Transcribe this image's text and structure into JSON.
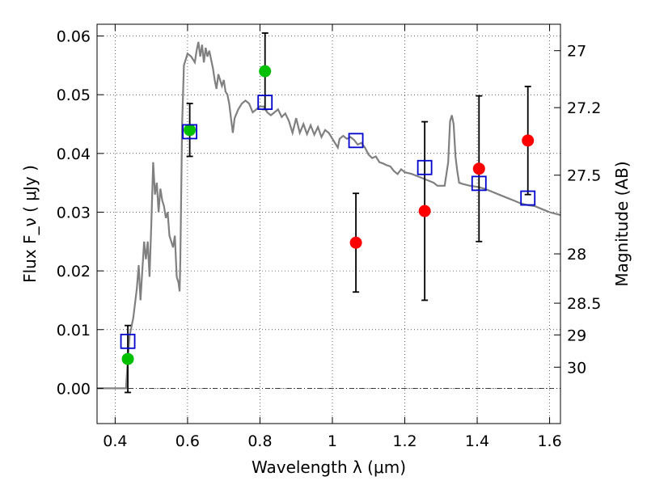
{
  "chart_data": {
    "type": "scatter",
    "xlabel": "Wavelength  λ (μm)",
    "ylabel": "Flux  F_ν  ( μJy )",
    "y2label": "Magnitude (AB)",
    "xlim": [
      0.35,
      1.63
    ],
    "ylim": [
      -0.006,
      0.062
    ],
    "grid": true,
    "x_ticks": [
      0.4,
      0.6,
      0.8,
      1.0,
      1.2,
      1.4,
      1.6
    ],
    "x_tick_labels": [
      "0.4",
      "0.6",
      "0.8",
      "1",
      "1.2",
      "1.4",
      "1.6"
    ],
    "y_ticks": [
      0.0,
      0.01,
      0.02,
      0.03,
      0.04,
      0.05,
      0.06
    ],
    "y_tick_labels": [
      "0.00",
      "0.01",
      "0.02",
      "0.03",
      "0.04",
      "0.05",
      "0.06"
    ],
    "y2_ticks": [
      {
        "label": "27",
        "flux": 0.0575
      },
      {
        "label": "27.2",
        "flux": 0.0478
      },
      {
        "label": "27.5",
        "flux": 0.0363
      },
      {
        "label": "28",
        "flux": 0.0229
      },
      {
        "label": "28.5",
        "flux": 0.0145
      },
      {
        "label": "29",
        "flux": 0.0091
      },
      {
        "label": "30",
        "flux": 0.0036
      }
    ],
    "series": [
      {
        "kind": "model_sed",
        "color": "#808080",
        "points": [
          [
            0.35,
            0.0
          ],
          [
            0.42,
            0.0
          ],
          [
            0.43,
            0.0
          ],
          [
            0.435,
            0.005
          ],
          [
            0.44,
            0.009
          ],
          [
            0.45,
            0.012
          ],
          [
            0.46,
            0.017
          ],
          [
            0.465,
            0.021
          ],
          [
            0.47,
            0.015
          ],
          [
            0.48,
            0.025
          ],
          [
            0.485,
            0.022
          ],
          [
            0.49,
            0.025
          ],
          [
            0.495,
            0.019
          ],
          [
            0.5,
            0.028
          ],
          [
            0.505,
            0.0385
          ],
          [
            0.51,
            0.033
          ],
          [
            0.515,
            0.035
          ],
          [
            0.52,
            0.03
          ],
          [
            0.525,
            0.034
          ],
          [
            0.53,
            0.032
          ],
          [
            0.535,
            0.031
          ],
          [
            0.54,
            0.029
          ],
          [
            0.545,
            0.03
          ],
          [
            0.55,
            0.026
          ],
          [
            0.56,
            0.024
          ],
          [
            0.565,
            0.026
          ],
          [
            0.57,
            0.019
          ],
          [
            0.575,
            0.018
          ],
          [
            0.578,
            0.0165
          ],
          [
            0.58,
            0.022
          ],
          [
            0.585,
            0.045
          ],
          [
            0.59,
            0.055
          ],
          [
            0.6,
            0.057
          ],
          [
            0.61,
            0.0565
          ],
          [
            0.62,
            0.0555
          ],
          [
            0.625,
            0.0575
          ],
          [
            0.63,
            0.059
          ],
          [
            0.635,
            0.0565
          ],
          [
            0.64,
            0.0585
          ],
          [
            0.645,
            0.0555
          ],
          [
            0.65,
            0.058
          ],
          [
            0.655,
            0.0565
          ],
          [
            0.66,
            0.0575
          ],
          [
            0.665,
            0.056
          ],
          [
            0.67,
            0.0545
          ],
          [
            0.675,
            0.0525
          ],
          [
            0.68,
            0.051
          ],
          [
            0.685,
            0.0535
          ],
          [
            0.69,
            0.0525
          ],
          [
            0.695,
            0.0515
          ],
          [
            0.7,
            0.0525
          ],
          [
            0.705,
            0.0505
          ],
          [
            0.71,
            0.05
          ],
          [
            0.715,
            0.0485
          ],
          [
            0.72,
            0.046
          ],
          [
            0.725,
            0.0435
          ],
          [
            0.73,
            0.046
          ],
          [
            0.74,
            0.0475
          ],
          [
            0.75,
            0.0485
          ],
          [
            0.76,
            0.049
          ],
          [
            0.77,
            0.0485
          ],
          [
            0.78,
            0.047
          ],
          [
            0.79,
            0.0475
          ],
          [
            0.8,
            0.048
          ],
          [
            0.81,
            0.048
          ],
          [
            0.82,
            0.047
          ],
          [
            0.83,
            0.0465
          ],
          [
            0.84,
            0.047
          ],
          [
            0.85,
            0.0475
          ],
          [
            0.86,
            0.0462
          ],
          [
            0.87,
            0.0468
          ],
          [
            0.88,
            0.0455
          ],
          [
            0.89,
            0.0435
          ],
          [
            0.9,
            0.046
          ],
          [
            0.91,
            0.0435
          ],
          [
            0.92,
            0.045
          ],
          [
            0.93,
            0.0433
          ],
          [
            0.94,
            0.0448
          ],
          [
            0.95,
            0.0432
          ],
          [
            0.96,
            0.0445
          ],
          [
            0.97,
            0.0428
          ],
          [
            0.98,
            0.044
          ],
          [
            0.99,
            0.0435
          ],
          [
            1.0,
            0.0425
          ],
          [
            1.01,
            0.0415
          ],
          [
            1.015,
            0.041
          ],
          [
            1.02,
            0.0425
          ],
          [
            1.03,
            0.043
          ],
          [
            1.04,
            0.0425
          ],
          [
            1.05,
            0.0428
          ],
          [
            1.06,
            0.0423
          ],
          [
            1.07,
            0.0415
          ],
          [
            1.08,
            0.0418
          ],
          [
            1.09,
            0.041
          ],
          [
            1.1,
            0.0398
          ],
          [
            1.11,
            0.0392
          ],
          [
            1.12,
            0.0395
          ],
          [
            1.13,
            0.0385
          ],
          [
            1.14,
            0.0383
          ],
          [
            1.15,
            0.038
          ],
          [
            1.16,
            0.0378
          ],
          [
            1.17,
            0.037
          ],
          [
            1.18,
            0.0365
          ],
          [
            1.19,
            0.0373
          ],
          [
            1.2,
            0.0368
          ],
          [
            1.22,
            0.0365
          ],
          [
            1.24,
            0.036
          ],
          [
            1.26,
            0.0355
          ],
          [
            1.28,
            0.035
          ],
          [
            1.29,
            0.0345
          ],
          [
            1.3,
            0.0345
          ],
          [
            1.31,
            0.0345
          ],
          [
            1.32,
            0.0385
          ],
          [
            1.325,
            0.0455
          ],
          [
            1.33,
            0.0465
          ],
          [
            1.335,
            0.045
          ],
          [
            1.34,
            0.0395
          ],
          [
            1.345,
            0.037
          ],
          [
            1.35,
            0.035
          ],
          [
            1.36,
            0.0348
          ],
          [
            1.38,
            0.0345
          ],
          [
            1.4,
            0.0343
          ],
          [
            1.42,
            0.034
          ],
          [
            1.44,
            0.0335
          ],
          [
            1.46,
            0.033
          ],
          [
            1.48,
            0.0325
          ],
          [
            1.5,
            0.032
          ],
          [
            1.52,
            0.0315
          ],
          [
            1.54,
            0.0312
          ],
          [
            1.56,
            0.031
          ],
          [
            1.58,
            0.0305
          ],
          [
            1.6,
            0.03
          ],
          [
            1.63,
            0.0295
          ]
        ]
      },
      {
        "kind": "model_band_flux",
        "color": "#0000cc",
        "points": [
          {
            "x": 0.435,
            "y": 0.008
          },
          {
            "x": 0.606,
            "y": 0.0437
          },
          {
            "x": 0.814,
            "y": 0.0487
          },
          {
            "x": 1.065,
            "y": 0.0422
          },
          {
            "x": 1.255,
            "y": 0.0376
          },
          {
            "x": 1.405,
            "y": 0.0349
          },
          {
            "x": 1.54,
            "y": 0.0324
          }
        ]
      },
      {
        "kind": "observed_detection",
        "color": "#00c000",
        "points": [
          {
            "x": 0.435,
            "y": 0.005,
            "err": 0.0057
          },
          {
            "x": 0.606,
            "y": 0.044,
            "err": 0.0045
          },
          {
            "x": 0.814,
            "y": 0.054,
            "err": 0.0065
          }
        ]
      },
      {
        "kind": "observed_other",
        "color": "#ff0000",
        "points": [
          {
            "x": 1.065,
            "y": 0.0248,
            "err": 0.0084
          },
          {
            "x": 1.255,
            "y": 0.0302,
            "err": 0.0152
          },
          {
            "x": 1.405,
            "y": 0.0374,
            "err": 0.0124
          },
          {
            "x": 1.54,
            "y": 0.0422,
            "err": 0.0092
          }
        ]
      }
    ]
  }
}
